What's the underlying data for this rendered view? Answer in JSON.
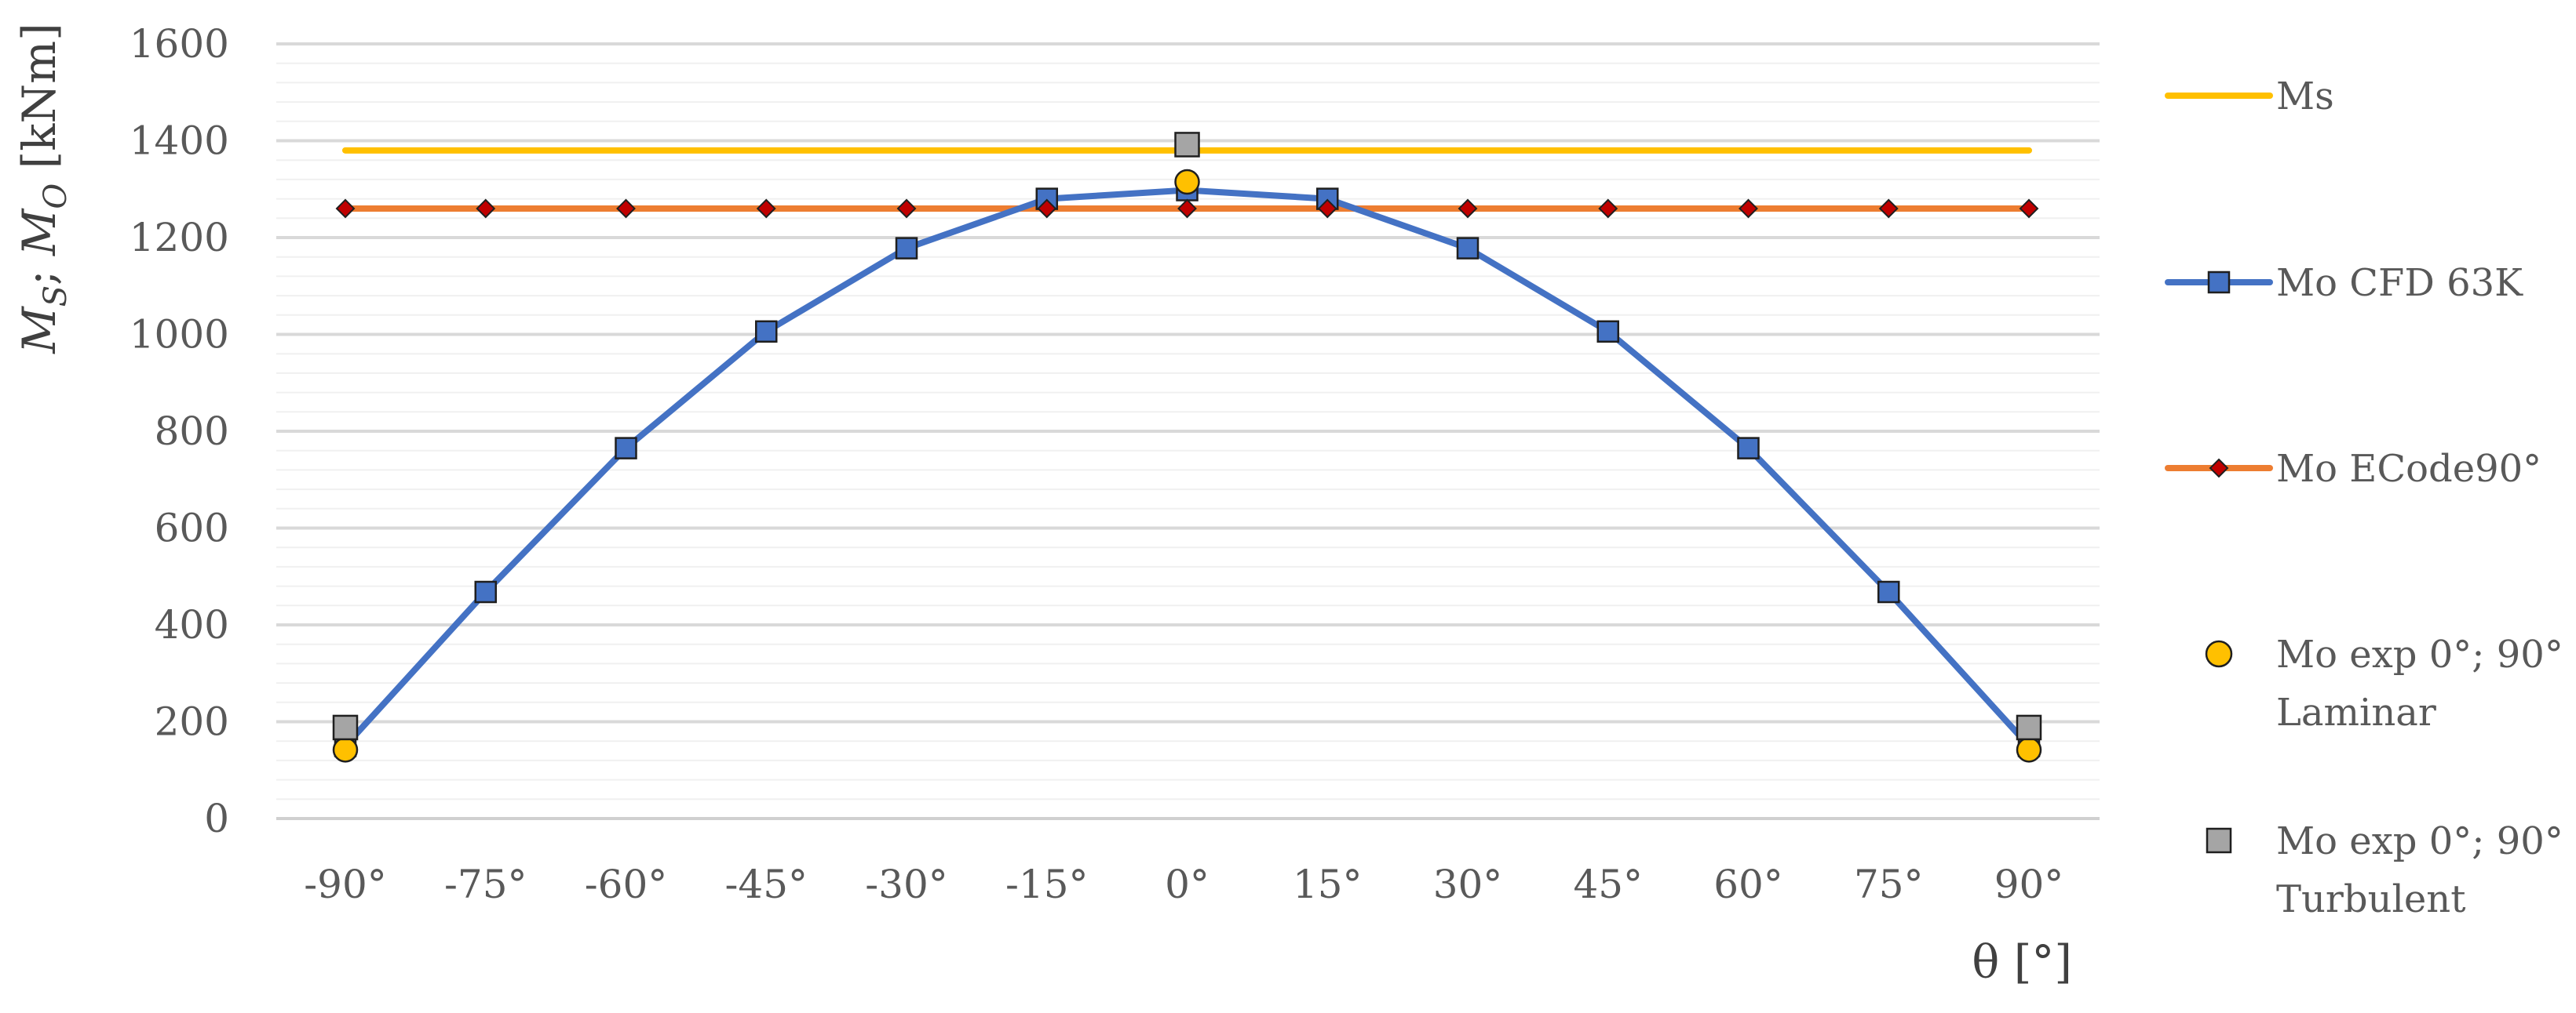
{
  "chart_data": {
    "type": "line",
    "title": "",
    "xlabel": "θ [°]",
    "ylabel_parts": {
      "m1": "M",
      "s1": "S",
      "sep": "; ",
      "m2": "M",
      "s2": "O",
      "unit": " [kNm]"
    },
    "categories": [
      "-90°",
      "-75°",
      "-60°",
      "-45°",
      "-30°",
      "-15°",
      "0°",
      "15°",
      "30°",
      "45°",
      "60°",
      "75°",
      "90°"
    ],
    "ylim": [
      0,
      1600
    ],
    "yticks": [
      0,
      200,
      400,
      600,
      800,
      1000,
      1200,
      1400,
      1600
    ],
    "ytick_labels": [
      "0",
      "200",
      "400",
      "600",
      "800",
      "1000",
      "1200",
      "1400",
      "1600"
    ],
    "minor_grid_step": 40,
    "grid": true,
    "legend_position": "right",
    "series": [
      {
        "name": "Ms",
        "style": "line",
        "color": "#FFC000",
        "values": [
          1380,
          1380,
          1380,
          1380,
          1380,
          1380,
          1380,
          1380,
          1380,
          1380,
          1380,
          1380,
          1380
        ]
      },
      {
        "name": "Mo CFD 63K",
        "style": "line-square",
        "color": "#4472C4",
        "values": [
          150,
          468,
          765,
          1006,
          1178,
          1280,
          1298,
          1280,
          1178,
          1006,
          765,
          468,
          150
        ]
      },
      {
        "name": "Mo ECode90°",
        "style": "line-diamond",
        "color": "#ED7D31",
        "marker_color": "#C00000",
        "values": [
          1260,
          1260,
          1260,
          1260,
          1260,
          1260,
          1260,
          1260,
          1260,
          1260,
          1260,
          1260,
          1260
        ]
      },
      {
        "name": "Mo exp 0°; 90° Laminar",
        "legend_lines": [
          "Mo exp 0°; 90°",
          "Laminar"
        ],
        "style": "circle",
        "color": "#FFC000",
        "points": [
          {
            "x": "-90°",
            "y": 142
          },
          {
            "x": "0°",
            "y": 1315
          },
          {
            "x": "90°",
            "y": 142
          }
        ]
      },
      {
        "name": "Mo exp 0°; 90° Turbulent",
        "legend_lines": [
          "Mo exp 0°; 90°",
          "Turbulent"
        ],
        "style": "square",
        "color": "#A5A5A5",
        "points": [
          {
            "x": "-90°",
            "y": 188
          },
          {
            "x": "0°",
            "y": 1392
          },
          {
            "x": "90°",
            "y": 188
          }
        ]
      }
    ]
  }
}
